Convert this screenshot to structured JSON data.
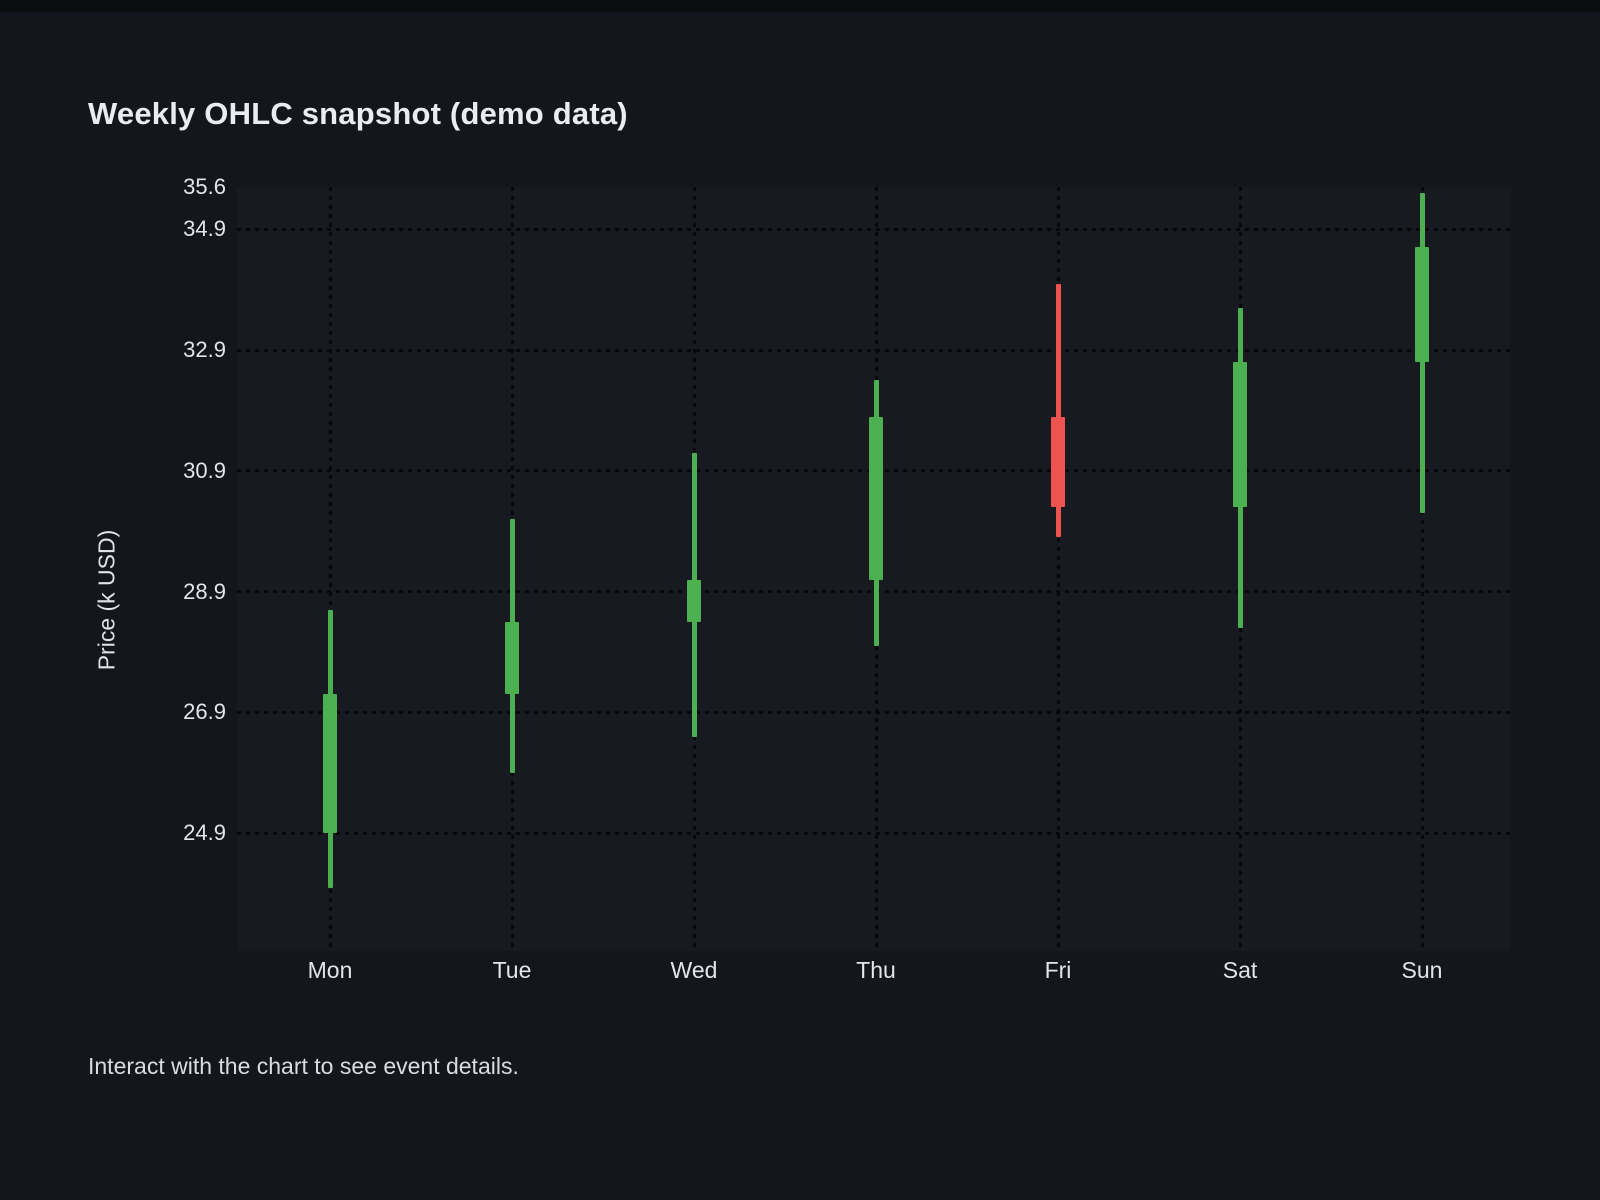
{
  "page": {
    "footer": "Interact with the chart to see event details."
  },
  "chart_data": {
    "type": "candlestick",
    "title": "Weekly OHLC snapshot (demo data)",
    "xlabel": "",
    "ylabel": "Price (k USD)",
    "categories": [
      "Mon",
      "Tue",
      "Wed",
      "Thu",
      "Fri",
      "Sat",
      "Sun"
    ],
    "candles": [
      {
        "day": "Mon",
        "open": 24.9,
        "high": 28.6,
        "low": 24.0,
        "close": 27.2
      },
      {
        "day": "Tue",
        "open": 27.2,
        "high": 30.1,
        "low": 25.9,
        "close": 28.4
      },
      {
        "day": "Wed",
        "open": 28.4,
        "high": 31.2,
        "low": 26.5,
        "close": 29.1
      },
      {
        "day": "Thu",
        "open": 29.1,
        "high": 32.4,
        "low": 28.0,
        "close": 31.8
      },
      {
        "day": "Fri",
        "open": 31.8,
        "high": 34.0,
        "low": 29.8,
        "close": 30.3
      },
      {
        "day": "Sat",
        "open": 30.3,
        "high": 33.6,
        "low": 28.3,
        "close": 32.7
      },
      {
        "day": "Sun",
        "open": 32.7,
        "high": 35.5,
        "low": 30.2,
        "close": 34.6
      }
    ],
    "ylim": [
      22.95,
      35.6
    ],
    "yticks": [
      {
        "label": "35.6",
        "value": 35.6,
        "gridline": false
      },
      {
        "label": "34.9",
        "value": 34.9,
        "gridline": true
      },
      {
        "label": "32.9",
        "value": 32.9,
        "gridline": true
      },
      {
        "label": "30.9",
        "value": 30.9,
        "gridline": true
      },
      {
        "label": "28.9",
        "value": 28.9,
        "gridline": true
      },
      {
        "label": "26.9",
        "value": 26.9,
        "gridline": true
      },
      {
        "label": "24.9",
        "value": 24.9,
        "gridline": true
      }
    ],
    "grid_style": "dotted",
    "legend": "none",
    "colors": {
      "up": "#4caf50",
      "down": "#ef5350"
    }
  }
}
